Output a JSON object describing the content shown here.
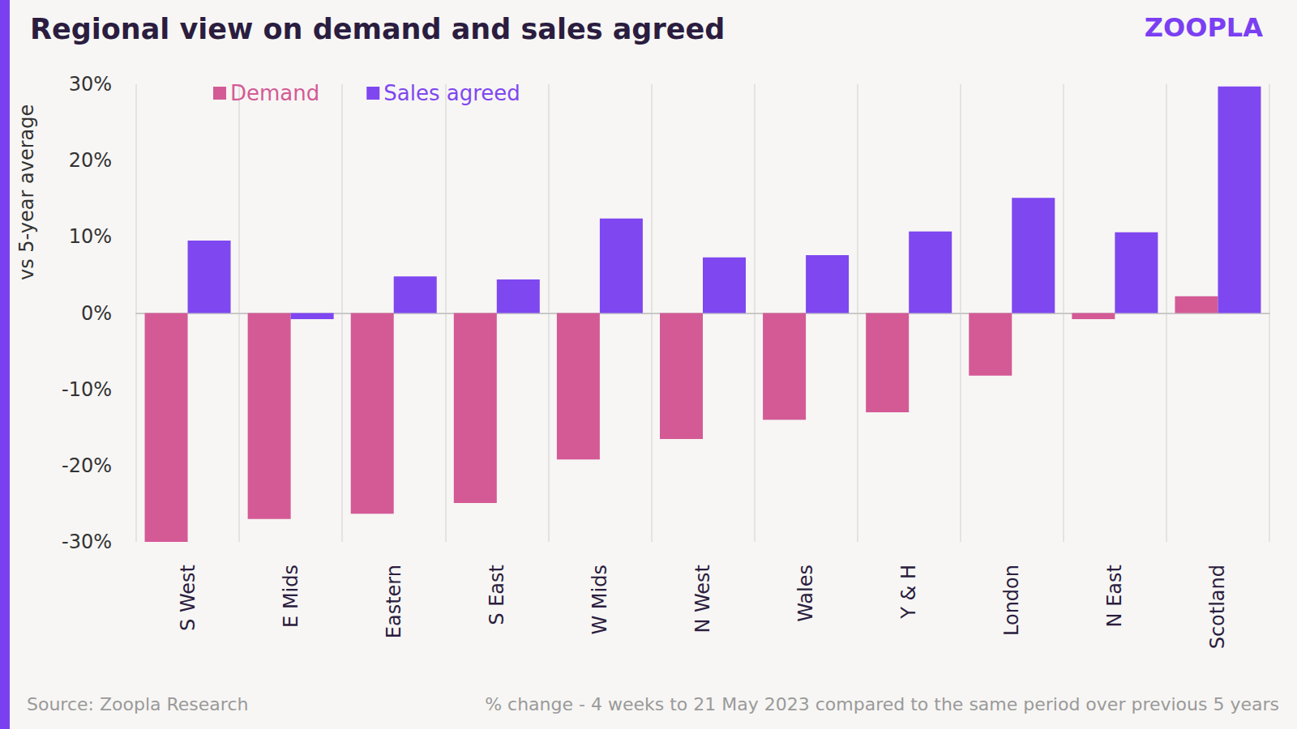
{
  "chart_data": {
    "type": "bar",
    "title": "Regional view on demand and sales agreed",
    "brand": "ZOOPLA",
    "y_label": "vs 5-year average",
    "source": "Source: Zoopla Research",
    "note": "% change - 4 weeks to 21 May 2023 compared to the same period over previous 5 years",
    "categories": [
      "S West",
      "E Mids",
      "Eastern",
      "S East",
      "W Mids",
      "N West",
      "Wales",
      "Y & H",
      "London",
      "N East",
      "Scotland"
    ],
    "series": [
      {
        "name": "Demand",
        "color": "#d45a96",
        "values": [
          -30,
          -27,
          -26.3,
          -24.9,
          -19.2,
          -16.5,
          -14,
          -13,
          -8.2,
          -0.8,
          2.2
        ]
      },
      {
        "name": "Sales agreed",
        "color": "#7f47f0",
        "values": [
          9.5,
          -0.8,
          4.8,
          4.4,
          12.4,
          7.3,
          7.6,
          10.7,
          15.1,
          10.6,
          29.7
        ]
      }
    ],
    "ylim": [
      -30,
      30
    ],
    "yticks": [
      {
        "value": -30,
        "label": "-30%"
      },
      {
        "value": -20,
        "label": "-20%"
      },
      {
        "value": -10,
        "label": "-10%"
      },
      {
        "value": 0,
        "label": "0%"
      },
      {
        "value": 10,
        "label": "10%"
      },
      {
        "value": 20,
        "label": "20%"
      },
      {
        "value": 30,
        "label": "30%"
      }
    ],
    "grid": true,
    "legend": "top"
  }
}
